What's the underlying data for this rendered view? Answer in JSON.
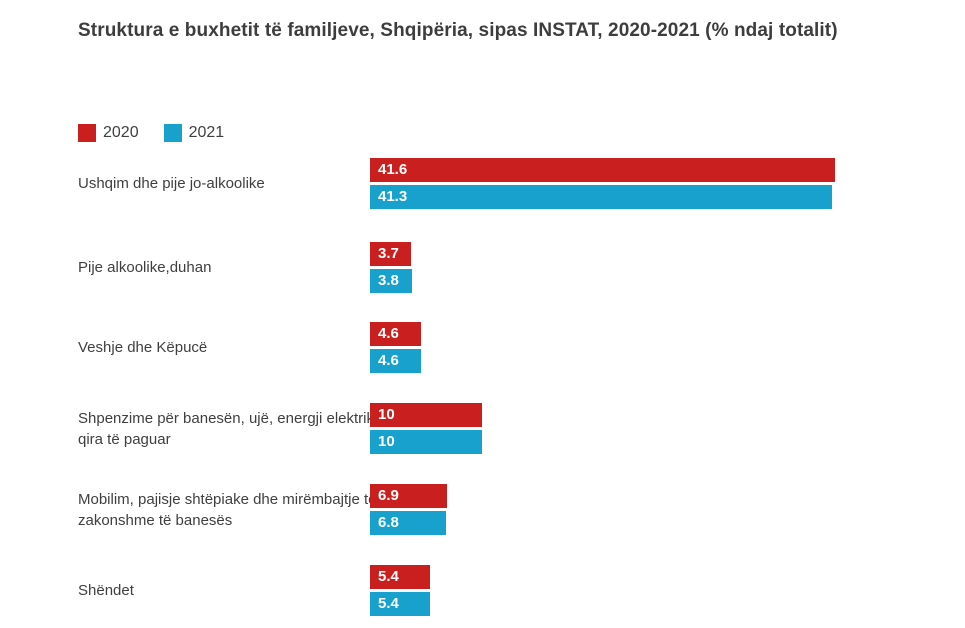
{
  "title": "Struktura e buxhetit të familjeve, Shqipëria, sipas INSTAT, 2020-2021 (% ndaj totalit)",
  "legend": [
    {
      "label": "2020",
      "color": "#c9201f"
    },
    {
      "label": "2021",
      "color": "#18a1cc"
    }
  ],
  "chart_data": {
    "type": "bar",
    "orientation": "horizontal",
    "title": "Struktura e buxhetit të familjeve, Shqipëria, sipas INSTAT, 2020-2021 (% ndaj totalit)",
    "categories": [
      "Ushqim dhe pije jo-alkoolike",
      "Pije alkoolike,duhan",
      "Veshje dhe Këpucë",
      "Shpenzime për banesën, ujë, energji elektrike, qira të paguar",
      "Mobilim, pajisje shtëpiake dhe mirëmbajtje të zakonshme të banesës",
      "Shëndet"
    ],
    "series": [
      {
        "name": "2020",
        "color": "#c9201f",
        "values": [
          41.6,
          3.7,
          4.6,
          10,
          6.9,
          5.4
        ]
      },
      {
        "name": "2021",
        "color": "#18a1cc",
        "values": [
          41.3,
          3.8,
          4.6,
          10,
          6.8,
          5.4
        ]
      }
    ],
    "value_labels": "inside-bar-start",
    "xlabel": "",
    "ylabel": "",
    "xlim": [
      0,
      41.6
    ],
    "grid": false,
    "axes_shown": false,
    "legend_position": "top-left"
  },
  "colors": {
    "background": "#ffffff",
    "text": "#3f3f3f",
    "bar_value_text": "#ffffff"
  }
}
